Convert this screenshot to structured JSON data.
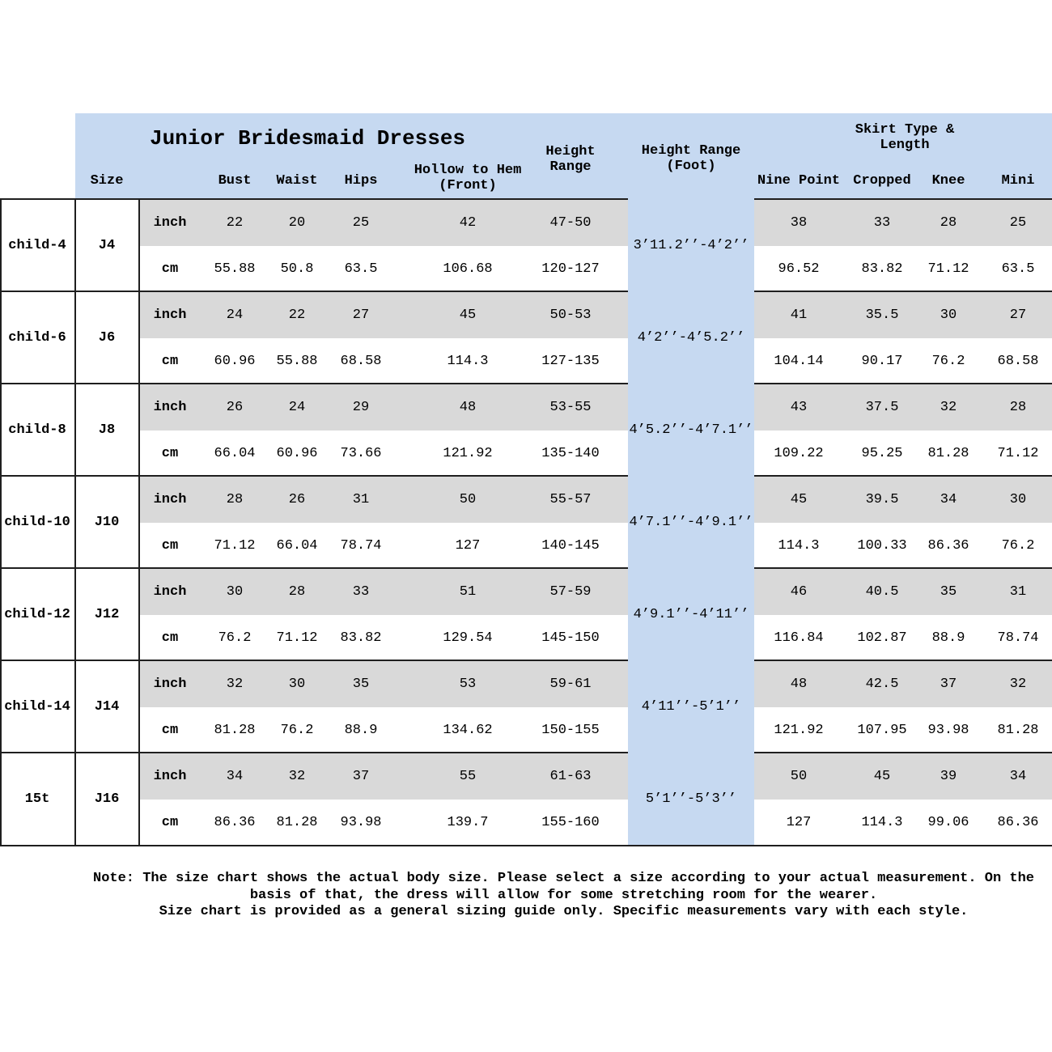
{
  "table": {
    "title": "Junior Bridesmaid Dresses",
    "header": {
      "size": "Size",
      "bust": "Bust",
      "waist": "Waist",
      "hips": "Hips",
      "hollow": "Hollow to Hem\n(Front)",
      "height_range": "Height\nRange",
      "height_range_foot": "Height Range\n(Foot)",
      "skirt_group": "Skirt Type & Length",
      "nine_point": "Nine Point",
      "cropped": "Cropped",
      "knee": "Knee",
      "mini": "Mini"
    },
    "units": {
      "inch": "inch",
      "cm": "cm"
    },
    "rows": [
      {
        "child": "child-4",
        "size": "J4",
        "foot": "3’11.2’’-4’2’’",
        "inch": {
          "bust": "22",
          "waist": "20",
          "hips": "25",
          "hollow": "42",
          "hrange": "47-50",
          "nine": "38",
          "crop": "33",
          "knee": "28",
          "mini": "25"
        },
        "cm": {
          "bust": "55.88",
          "waist": "50.8",
          "hips": "63.5",
          "hollow": "106.68",
          "hrange": "120-127",
          "nine": "96.52",
          "crop": "83.82",
          "knee": "71.12",
          "mini": "63.5"
        }
      },
      {
        "child": "child-6",
        "size": "J6",
        "foot": "4’2’’-4’5.2’’",
        "inch": {
          "bust": "24",
          "waist": "22",
          "hips": "27",
          "hollow": "45",
          "hrange": "50-53",
          "nine": "41",
          "crop": "35.5",
          "knee": "30",
          "mini": "27"
        },
        "cm": {
          "bust": "60.96",
          "waist": "55.88",
          "hips": "68.58",
          "hollow": "114.3",
          "hrange": "127-135",
          "nine": "104.14",
          "crop": "90.17",
          "knee": "76.2",
          "mini": "68.58"
        }
      },
      {
        "child": "child-8",
        "size": "J8",
        "foot": "4’5.2’’-4’7.1’’",
        "inch": {
          "bust": "26",
          "waist": "24",
          "hips": "29",
          "hollow": "48",
          "hrange": "53-55",
          "nine": "43",
          "crop": "37.5",
          "knee": "32",
          "mini": "28"
        },
        "cm": {
          "bust": "66.04",
          "waist": "60.96",
          "hips": "73.66",
          "hollow": "121.92",
          "hrange": "135-140",
          "nine": "109.22",
          "crop": "95.25",
          "knee": "81.28",
          "mini": "71.12"
        }
      },
      {
        "child": "child-10",
        "size": "J10",
        "foot": "4’7.1’’-4’9.1’’",
        "inch": {
          "bust": "28",
          "waist": "26",
          "hips": "31",
          "hollow": "50",
          "hrange": "55-57",
          "nine": "45",
          "crop": "39.5",
          "knee": "34",
          "mini": "30"
        },
        "cm": {
          "bust": "71.12",
          "waist": "66.04",
          "hips": "78.74",
          "hollow": "127",
          "hrange": "140-145",
          "nine": "114.3",
          "crop": "100.33",
          "knee": "86.36",
          "mini": "76.2"
        }
      },
      {
        "child": "child-12",
        "size": "J12",
        "foot": "4’9.1’’-4’11’’",
        "inch": {
          "bust": "30",
          "waist": "28",
          "hips": "33",
          "hollow": "51",
          "hrange": "57-59",
          "nine": "46",
          "crop": "40.5",
          "knee": "35",
          "mini": "31"
        },
        "cm": {
          "bust": "76.2",
          "waist": "71.12",
          "hips": "83.82",
          "hollow": "129.54",
          "hrange": "145-150",
          "nine": "116.84",
          "crop": "102.87",
          "knee": "88.9",
          "mini": "78.74"
        }
      },
      {
        "child": "child-14",
        "size": "J14",
        "foot": "4’11’’-5’1’’",
        "inch": {
          "bust": "32",
          "waist": "30",
          "hips": "35",
          "hollow": "53",
          "hrange": "59-61",
          "nine": "48",
          "crop": "42.5",
          "knee": "37",
          "mini": "32"
        },
        "cm": {
          "bust": "81.28",
          "waist": "76.2",
          "hips": "88.9",
          "hollow": "134.62",
          "hrange": "150-155",
          "nine": "121.92",
          "crop": "107.95",
          "knee": "93.98",
          "mini": "81.28"
        }
      },
      {
        "child": "15t",
        "size": "J16",
        "foot": "5’1’’-5’3’’",
        "inch": {
          "bust": "34",
          "waist": "32",
          "hips": "37",
          "hollow": "55",
          "hrange": "61-63",
          "nine": "50",
          "crop": "45",
          "knee": "39",
          "mini": "34"
        },
        "cm": {
          "bust": "86.36",
          "waist": "81.28",
          "hips": "93.98",
          "hollow": "139.7",
          "hrange": "155-160",
          "nine": "127",
          "crop": "114.3",
          "knee": "99.06",
          "mini": "86.36"
        }
      }
    ],
    "note": {
      "line1": "Note: The size chart shows the actual body size. Please select a size according to your actual measurement. On the",
      "line2": "basis of that, the dress will allow for some stretching room for the wearer.",
      "line3": "Size chart is provided as a general sizing guide only. Specific measurements vary with each style."
    },
    "colors": {
      "header_blue": "#c6d9f1",
      "stripe_grey": "#d9d9d9",
      "line": "#1f1f1f"
    }
  }
}
